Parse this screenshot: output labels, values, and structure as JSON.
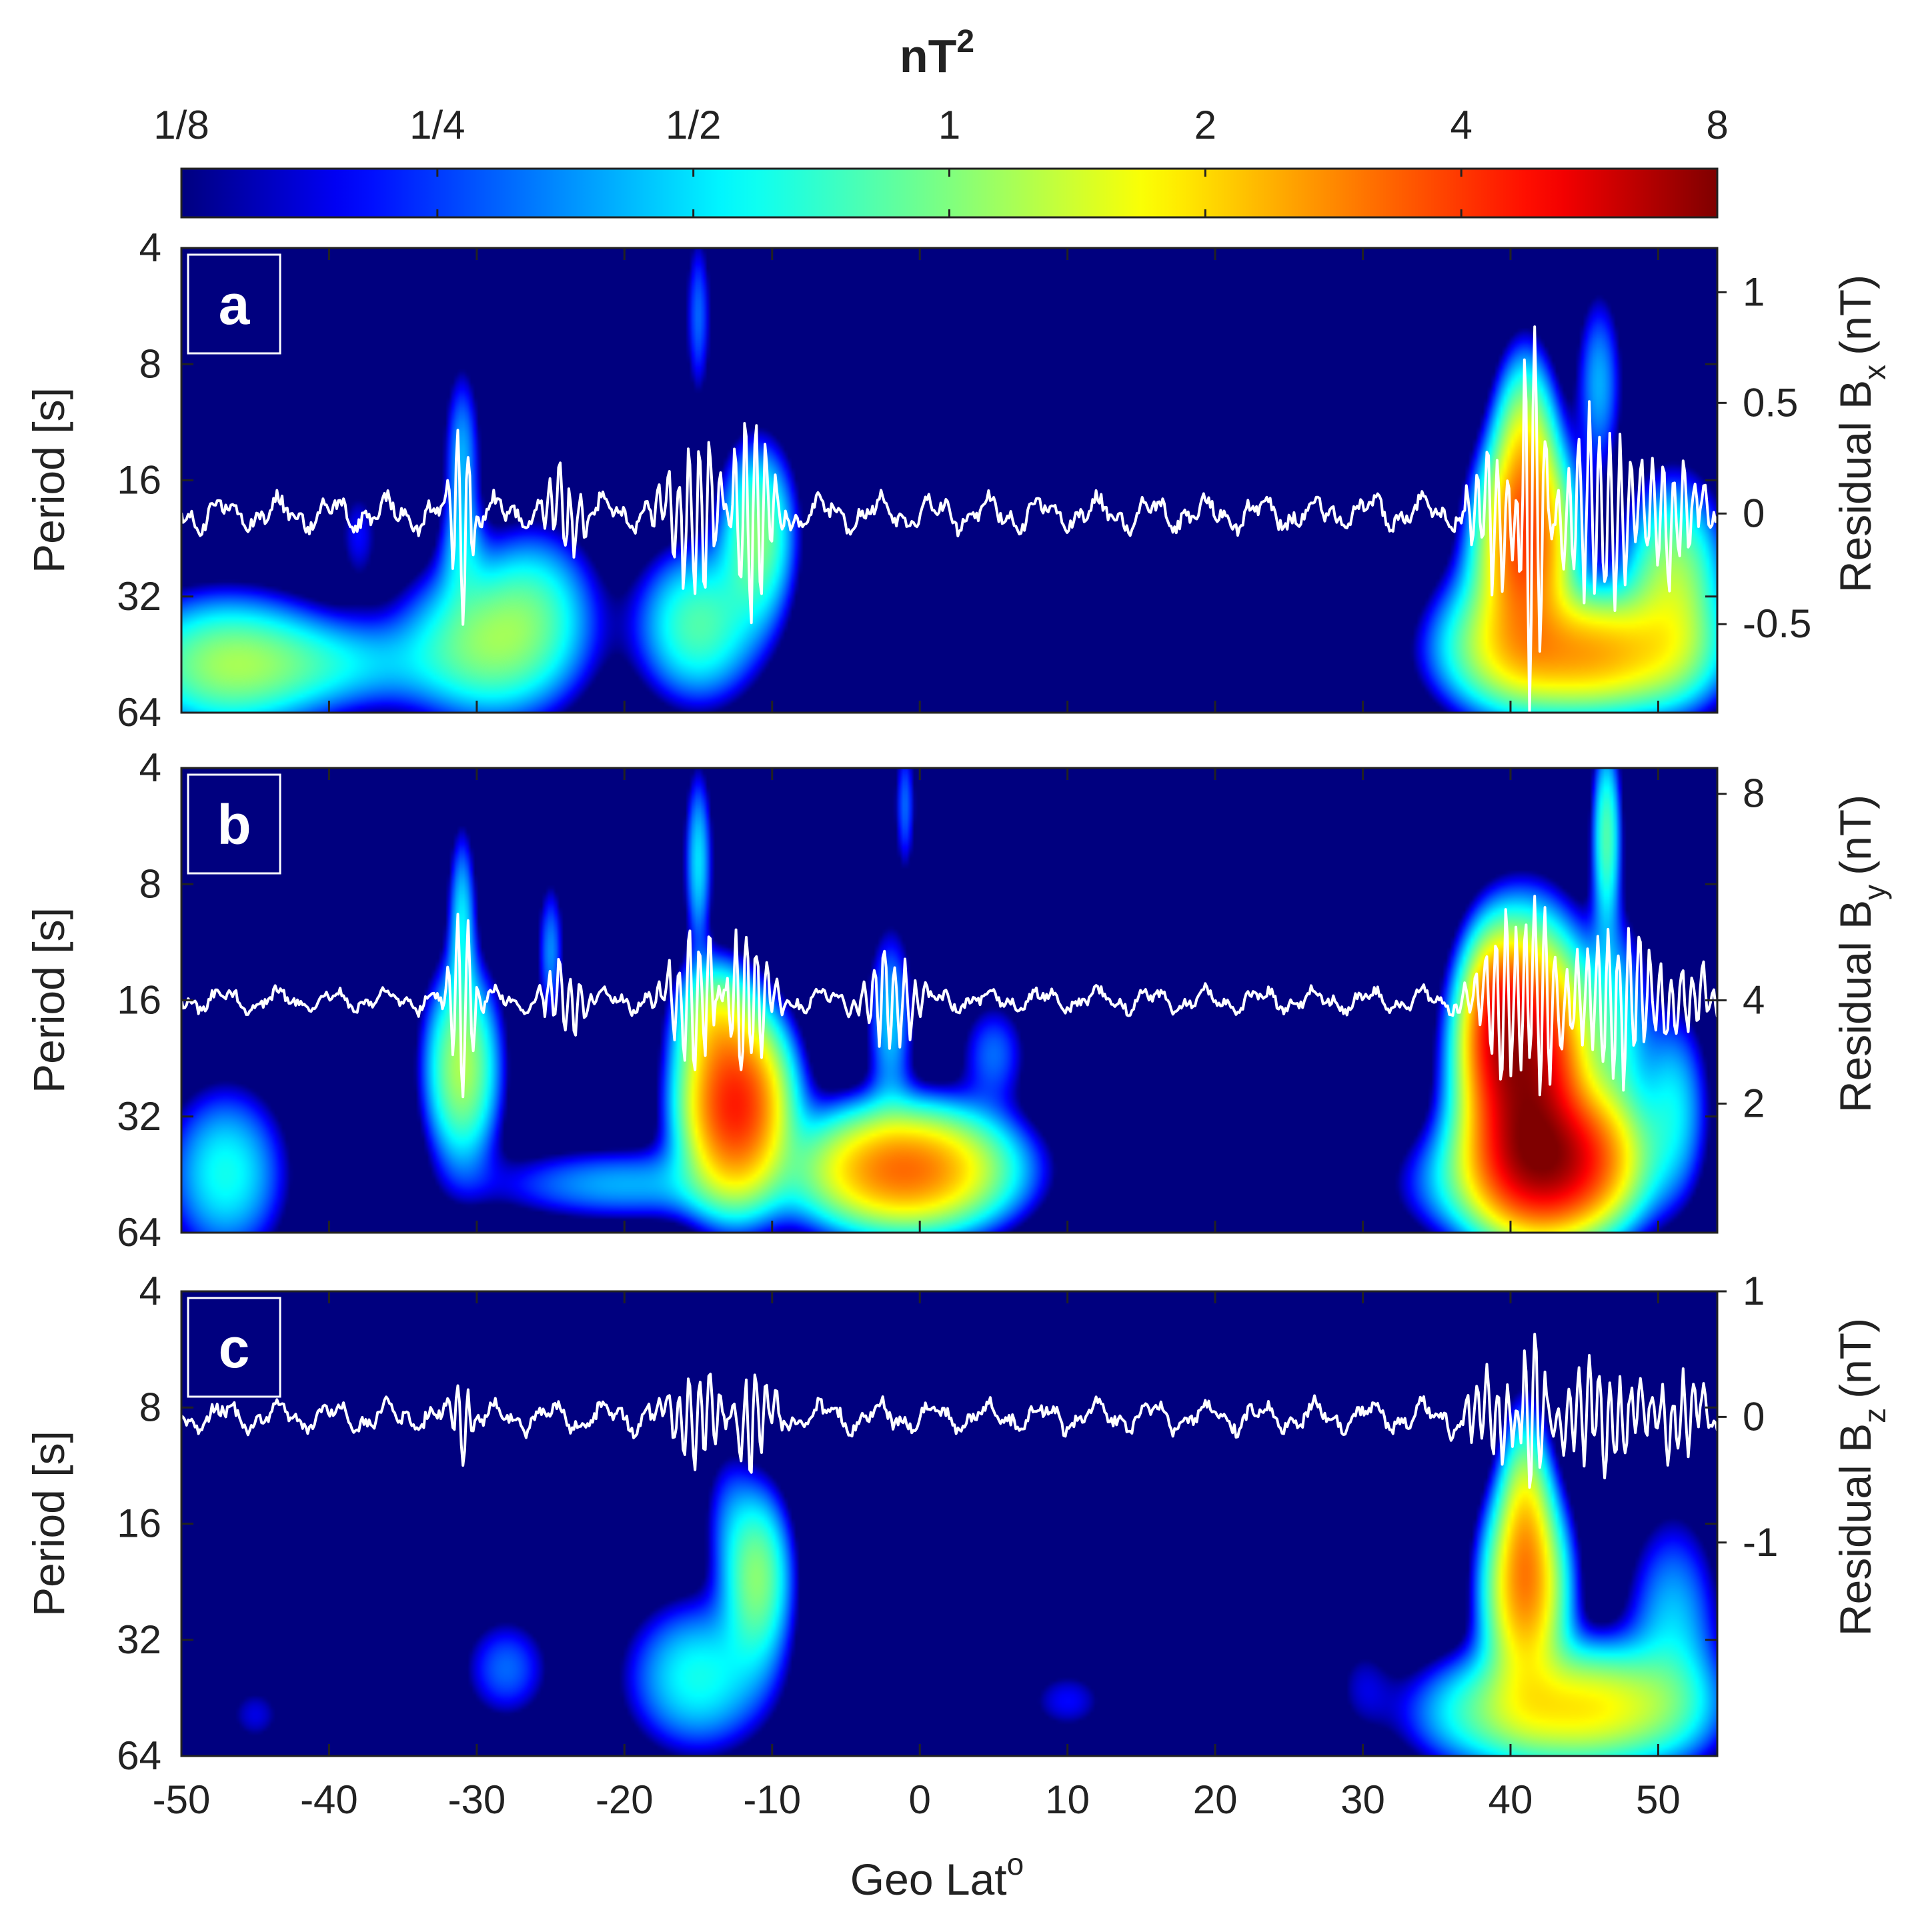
{
  "chart_data": {
    "type": "heatmap",
    "description_units": "wavelet power spectra of residual magnetic field vs geographic latitude",
    "colorbar": {
      "title": "nT",
      "title_superscript": "2",
      "tick_labels": [
        "1/8",
        "1/4",
        "1/2",
        "1",
        "2",
        "4",
        "8"
      ],
      "tick_values": [
        0.125,
        0.25,
        0.5,
        1,
        2,
        4,
        8
      ],
      "scale": "log2",
      "colormap": [
        "#00007f",
        "#0000ff",
        "#00ffff",
        "#7fff7f",
        "#ffff00",
        "#ff7f00",
        "#ff0000",
        "#7f0000"
      ]
    },
    "x_axis": {
      "label": "Geo Lat",
      "label_superscript": "o",
      "range": [
        -50,
        54
      ],
      "ticks": [
        -50,
        -40,
        -30,
        -20,
        -10,
        0,
        10,
        20,
        30,
        40,
        50
      ],
      "tick_labels": [
        "-50",
        "-40",
        "-30",
        "-20",
        "-10",
        "0",
        "10",
        "20",
        "30",
        "40",
        "50"
      ]
    },
    "y_axis": {
      "label": "Period [s]",
      "scale": "log2",
      "range": [
        4,
        64
      ],
      "ticks": [
        4,
        8,
        16,
        32,
        64
      ],
      "tick_labels": [
        "4",
        "8",
        "16",
        "32",
        "64"
      ]
    },
    "panels": [
      {
        "id": "a",
        "label": "a",
        "right_axis_label": "Residual B",
        "right_axis_subscript": "x",
        "right_axis_unit": "(nT)",
        "right_axis_range": [
          -0.9,
          1.2
        ],
        "right_axis_ticks": [
          1,
          0.5,
          0,
          -0.5
        ],
        "right_axis_tick_labels": [
          "1",
          "0.5",
          "0",
          "-0.5"
        ],
        "trace_baseline": 0,
        "trace_noise_amplitude": 0.05,
        "trace_bursts": [
          {
            "lat": -31,
            "amp": 0.6,
            "width": 0.5
          },
          {
            "lat": -24,
            "amp": 0.2,
            "width": 1.0
          },
          {
            "lat": -15,
            "amp": 0.4,
            "width": 1.5
          },
          {
            "lat": -11.5,
            "amp": 0.6,
            "width": 1.0
          },
          {
            "lat": 39,
            "amp": 0.35,
            "width": 1.2
          },
          {
            "lat": 41.5,
            "amp": 1.1,
            "width": 0.6
          },
          {
            "lat": 46,
            "amp": 0.45,
            "width": 2.0
          },
          {
            "lat": 51,
            "amp": 0.3,
            "width": 1.5
          }
        ],
        "power_blobs": [
          {
            "lat": -47,
            "period": 48,
            "power": 1.0,
            "sx": 4.0,
            "sy": 0.35
          },
          {
            "lat": -40,
            "period": 48,
            "power": 0.45,
            "sx": 5.0,
            "sy": 0.25
          },
          {
            "lat": -29,
            "period": 42,
            "power": 1.0,
            "sx": 3.5,
            "sy": 0.4
          },
          {
            "lat": -26,
            "period": 32,
            "power": 0.4,
            "sx": 2.5,
            "sy": 0.4
          },
          {
            "lat": -31,
            "period": 14,
            "power": 0.4,
            "sx": 0.8,
            "sy": 0.5
          },
          {
            "lat": -31,
            "period": 24,
            "power": 0.3,
            "sx": 1.0,
            "sy": 0.3
          },
          {
            "lat": -38,
            "period": 22,
            "power": 0.2,
            "sx": 1.0,
            "sy": 0.3
          },
          {
            "lat": -15,
            "period": 38,
            "power": 0.8,
            "sx": 2.5,
            "sy": 0.4
          },
          {
            "lat": -11,
            "period": 22,
            "power": 1.0,
            "sx": 1.5,
            "sy": 0.45
          },
          {
            "lat": -15,
            "period": 6,
            "power": 0.3,
            "sx": 0.6,
            "sy": 0.5
          },
          {
            "lat": 41,
            "period": 24,
            "power": 3.5,
            "sx": 1.8,
            "sy": 0.5
          },
          {
            "lat": 41,
            "period": 14,
            "power": 1.5,
            "sx": 1.2,
            "sy": 0.5
          },
          {
            "lat": 45,
            "period": 45,
            "power": 2.5,
            "sx": 4.5,
            "sy": 0.3
          },
          {
            "lat": 51,
            "period": 30,
            "power": 1.2,
            "sx": 2.0,
            "sy": 0.5
          },
          {
            "lat": 39,
            "period": 40,
            "power": 0.6,
            "sx": 2.5,
            "sy": 0.4
          },
          {
            "lat": 46,
            "period": 9,
            "power": 0.4,
            "sx": 1.0,
            "sy": 0.5
          }
        ]
      },
      {
        "id": "b",
        "label": "b",
        "right_axis_label": "Residual B",
        "right_axis_subscript": "y",
        "right_axis_unit": "(nT)",
        "right_axis_range": [
          -0.5,
          8.5
        ],
        "right_axis_ticks": [
          8,
          4,
          2
        ],
        "right_axis_tick_labels": [
          "8",
          "4",
          "2"
        ],
        "trace_baseline": 4,
        "trace_noise_amplitude": 0.15,
        "trace_bursts": [
          {
            "lat": -31,
            "amp": 2.2,
            "width": 0.6
          },
          {
            "lat": -24,
            "amp": 0.8,
            "width": 1.0
          },
          {
            "lat": -15,
            "amp": 1.5,
            "width": 1.5
          },
          {
            "lat": -12,
            "amp": 2.0,
            "width": 1.2
          },
          {
            "lat": -2,
            "amp": 1.2,
            "width": 1.2
          },
          {
            "lat": 40,
            "amp": 1.8,
            "width": 1.5
          },
          {
            "lat": 42,
            "amp": 2.5,
            "width": 0.8
          },
          {
            "lat": 47,
            "amp": 1.5,
            "width": 2.5
          },
          {
            "lat": 52,
            "amp": 0.6,
            "width": 1.5
          }
        ],
        "power_blobs": [
          {
            "lat": -47,
            "period": 45,
            "power": 0.6,
            "sx": 2.5,
            "sy": 0.45
          },
          {
            "lat": -31,
            "period": 24,
            "power": 1.2,
            "sx": 1.5,
            "sy": 0.5
          },
          {
            "lat": -31,
            "period": 10,
            "power": 0.5,
            "sx": 0.6,
            "sy": 0.5
          },
          {
            "lat": -25,
            "period": 12,
            "power": 0.35,
            "sx": 0.6,
            "sy": 0.4
          },
          {
            "lat": -20,
            "period": 48,
            "power": 0.4,
            "sx": 6.0,
            "sy": 0.2
          },
          {
            "lat": -12.5,
            "period": 30,
            "power": 4.5,
            "sx": 2.0,
            "sy": 0.45
          },
          {
            "lat": -14,
            "period": 18,
            "power": 1.0,
            "sx": 1.5,
            "sy": 0.3
          },
          {
            "lat": -15,
            "period": 7,
            "power": 0.5,
            "sx": 0.6,
            "sy": 0.5
          },
          {
            "lat": -1,
            "period": 44,
            "power": 3.2,
            "sx": 4.0,
            "sy": 0.3
          },
          {
            "lat": -2,
            "period": 18,
            "power": 0.45,
            "sx": 1.0,
            "sy": 0.5
          },
          {
            "lat": -1,
            "period": 5,
            "power": 0.3,
            "sx": 0.5,
            "sy": 0.4
          },
          {
            "lat": 5,
            "period": 22,
            "power": 0.3,
            "sx": 1.5,
            "sy": 0.3
          },
          {
            "lat": 38,
            "period": 48,
            "power": 0.45,
            "sx": 3.5,
            "sy": 0.3
          },
          {
            "lat": 41,
            "period": 24,
            "power": 7.0,
            "sx": 2.2,
            "sy": 0.6
          },
          {
            "lat": 43,
            "period": 42,
            "power": 6.0,
            "sx": 3.0,
            "sy": 0.35
          },
          {
            "lat": 39,
            "period": 18,
            "power": 2.5,
            "sx": 1.2,
            "sy": 0.4
          },
          {
            "lat": 47,
            "period": 20,
            "power": 0.6,
            "sx": 1.5,
            "sy": 0.6
          },
          {
            "lat": 51,
            "period": 30,
            "power": 0.5,
            "sx": 1.5,
            "sy": 0.5
          },
          {
            "lat": 46.5,
            "period": 6,
            "power": 0.8,
            "sx": 0.6,
            "sy": 0.5
          }
        ]
      },
      {
        "id": "c",
        "label": "c",
        "right_axis_label": "Residual B",
        "right_axis_subscript": "z",
        "right_axis_unit": "(nT)",
        "right_axis_range": [
          -2.7,
          1.0
        ],
        "right_axis_ticks": [
          1,
          0,
          -1
        ],
        "right_axis_tick_labels": [
          "1",
          "0",
          "-1"
        ],
        "trace_baseline": 0,
        "trace_noise_amplitude": 0.08,
        "trace_bursts": [
          {
            "lat": -31,
            "amp": 0.4,
            "width": 0.5
          },
          {
            "lat": -15,
            "amp": 0.4,
            "width": 1.5
          },
          {
            "lat": -11.5,
            "amp": 0.5,
            "width": 1.0
          },
          {
            "lat": 39,
            "amp": 0.35,
            "width": 1.5
          },
          {
            "lat": 41.5,
            "amp": 0.9,
            "width": 0.6
          },
          {
            "lat": 46,
            "amp": 0.45,
            "width": 2.0
          },
          {
            "lat": 51.5,
            "amp": 0.35,
            "width": 1.2
          }
        ],
        "power_blobs": [
          {
            "lat": -11,
            "period": 22,
            "power": 1.0,
            "sx": 1.4,
            "sy": 0.45
          },
          {
            "lat": -15,
            "period": 40,
            "power": 0.6,
            "sx": 3.0,
            "sy": 0.4
          },
          {
            "lat": -13,
            "period": 15,
            "power": 0.2,
            "sx": 1.2,
            "sy": 0.4
          },
          {
            "lat": -28,
            "period": 38,
            "power": 0.3,
            "sx": 2.0,
            "sy": 0.3
          },
          {
            "lat": -45,
            "period": 50,
            "power": 0.18,
            "sx": 1.5,
            "sy": 0.2
          },
          {
            "lat": 10,
            "period": 46,
            "power": 0.2,
            "sx": 2.0,
            "sy": 0.2
          },
          {
            "lat": 30,
            "period": 42,
            "power": 0.15,
            "sx": 1.5,
            "sy": 0.3
          },
          {
            "lat": 41,
            "period": 24,
            "power": 2.5,
            "sx": 1.6,
            "sy": 0.5
          },
          {
            "lat": 41,
            "period": 15,
            "power": 1.2,
            "sx": 1.0,
            "sy": 0.5
          },
          {
            "lat": 45,
            "period": 48,
            "power": 1.8,
            "sx": 4.5,
            "sy": 0.3
          },
          {
            "lat": 51,
            "period": 30,
            "power": 0.45,
            "sx": 2.0,
            "sy": 0.6
          },
          {
            "lat": 38,
            "period": 50,
            "power": 0.4,
            "sx": 3.5,
            "sy": 0.3
          }
        ]
      }
    ]
  }
}
